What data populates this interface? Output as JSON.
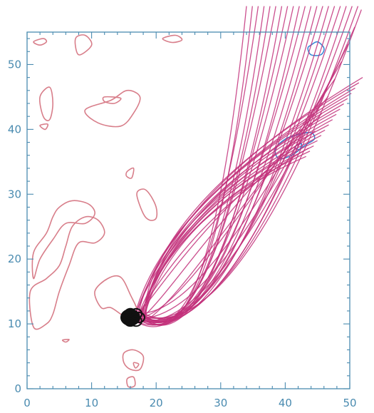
{
  "chart_data": {
    "type": "line",
    "title": "",
    "xlabel": "",
    "ylabel": "",
    "xlim": [
      0,
      50
    ],
    "ylim": [
      0,
      55
    ],
    "x_ticks": [
      "0",
      "10",
      "20",
      "30",
      "40",
      "50"
    ],
    "y_ticks": [
      "0",
      "10",
      "20",
      "30",
      "40",
      "50"
    ],
    "grid": false,
    "colors": {
      "field_lines": "#c2307a",
      "red_contours": "#d87e8a",
      "blue_contours": "#3a8ad6",
      "footpoint": "#111111",
      "axes": "#4a8bb0"
    },
    "series": [
      {
        "kind": "field_line_bundle",
        "count": 45,
        "start": [
          17.5,
          11.0
        ],
        "curves": [
          {
            "p0": [
              17.5,
              11.0
            ],
            "c1": [
              26.0,
              4.0
            ],
            "c2": [
              31.0,
              30.0
            ],
            "p3": [
              34.0,
              59.0
            ]
          },
          {
            "p0": [
              17.5,
              11.0
            ],
            "c1": [
              28.0,
              7.5
            ],
            "c2": [
              40.0,
              26.0
            ],
            "p3": [
              52.0,
              59.0
            ]
          },
          {
            "p0": [
              17.5,
              11.0
            ],
            "c1": [
              20.0,
              18.0
            ],
            "c2": [
              26.0,
              28.0
            ],
            "p3": [
              43.0,
              35.5
            ]
          },
          {
            "p0": [
              17.5,
              11.0
            ],
            "c1": [
              19.0,
              22.0
            ],
            "c2": [
              30.0,
              35.0
            ],
            "p3": [
              52.0,
              48.0
            ]
          }
        ]
      },
      {
        "kind": "contour",
        "color": "red",
        "loops": [
          [
            [
              1,
              21
            ],
            [
              3,
              24
            ],
            [
              4,
              26.5
            ],
            [
              5,
              28
            ],
            [
              7,
              29
            ],
            [
              9.5,
              28.5
            ],
            [
              10.5,
              27
            ],
            [
              9,
              25.5
            ],
            [
              6,
              25.5
            ],
            [
              4,
              23
            ],
            [
              2,
              20
            ],
            [
              1,
              17
            ]
          ],
          [
            [
              0.5,
              15
            ],
            [
              3,
              17
            ],
            [
              5,
              19
            ],
            [
              6,
              22
            ],
            [
              7,
              25
            ],
            [
              9,
              26.5
            ],
            [
              11,
              26
            ],
            [
              12,
              24
            ],
            [
              10.5,
              22.5
            ],
            [
              8,
              22.5
            ],
            [
              6.5,
              19
            ],
            [
              5,
              15
            ],
            [
              4,
              11.5
            ],
            [
              3,
              10
            ],
            [
              1,
              9.5
            ]
          ],
          [
            [
              9,
              43
            ],
            [
              13,
              44.5
            ],
            [
              15.5,
              46
            ],
            [
              17.5,
              45
            ],
            [
              16.5,
              42.5
            ],
            [
              14.5,
              40.5
            ],
            [
              11,
              41
            ]
          ],
          [
            [
              12,
              45
            ],
            [
              14.5,
              44.8
            ],
            [
              13.5,
              44
            ],
            [
              12,
              44.3
            ]
          ],
          [
            [
              2,
              45
            ],
            [
              3.5,
              46.5
            ],
            [
              4,
              44
            ],
            [
              3.5,
              41.5
            ],
            [
              2.5,
              42
            ]
          ],
          [
            [
              2,
              40.6
            ],
            [
              3.2,
              40.8
            ],
            [
              2.8,
              40
            ]
          ],
          [
            [
              15.5,
              33.5
            ],
            [
              16.5,
              34
            ],
            [
              16.2,
              32.5
            ],
            [
              15.4,
              32.8
            ]
          ],
          [
            [
              17,
              30
            ],
            [
              18,
              30.8
            ],
            [
              19,
              30
            ],
            [
              20,
              28
            ],
            [
              20,
              26.3
            ],
            [
              19,
              26
            ],
            [
              18,
              27
            ]
          ],
          [
            [
              10.5,
              15
            ],
            [
              12.5,
              17
            ],
            [
              14.5,
              17.2
            ],
            [
              16,
              14.5
            ],
            [
              17,
              12
            ],
            [
              15.5,
              11
            ],
            [
              13,
              12.5
            ],
            [
              11.5,
              12.5
            ]
          ],
          [
            [
              15,
              5.5
            ],
            [
              16.5,
              6
            ],
            [
              18,
              5
            ],
            [
              17.5,
              3
            ],
            [
              16,
              3
            ],
            [
              15,
              4
            ]
          ],
          [
            [
              16.5,
              4
            ],
            [
              17.3,
              3.8
            ],
            [
              16.8,
              3.2
            ]
          ],
          [
            [
              15.5,
              1.5
            ],
            [
              16.5,
              1.8
            ],
            [
              16.7,
              0.5
            ],
            [
              15.7,
              0.3
            ]
          ],
          [
            [
              8,
              51.5
            ],
            [
              7.5,
              54
            ],
            [
              9,
              54.5
            ],
            [
              10,
              53
            ]
          ],
          [
            [
              1,
              53.5
            ],
            [
              2.5,
              54
            ],
            [
              3,
              53.5
            ],
            [
              2,
              53
            ]
          ],
          [
            [
              21,
              54
            ],
            [
              23,
              54.5
            ],
            [
              24,
              53.8
            ],
            [
              22.5,
              53.4
            ]
          ],
          [
            [
              5.5,
              7.5
            ],
            [
              6.5,
              7.6
            ],
            [
              6.0,
              7.2
            ]
          ]
        ]
      },
      {
        "kind": "contour",
        "color": "blue",
        "loops": [
          [
            [
              44,
              53
            ],
            [
              45,
              53.5
            ],
            [
              46,
              52.5
            ],
            [
              45.5,
              51.5
            ],
            [
              44,
              51.5
            ],
            [
              43.5,
              52.5
            ]
          ],
          [
            [
              39,
              35.5
            ],
            [
              41,
              36
            ],
            [
              43,
              37.5
            ],
            [
              44.5,
              38.5
            ],
            [
              44,
              39.5
            ],
            [
              42,
              39.2
            ],
            [
              40,
              38.5
            ],
            [
              38.5,
              37
            ]
          ],
          [
            [
              41.5,
              37.3
            ],
            [
              42.5,
              37.8
            ],
            [
              42.2,
              36.9
            ]
          ]
        ]
      },
      {
        "kind": "footpoint_blob",
        "center": [
          16.0,
          11.0
        ]
      }
    ]
  }
}
